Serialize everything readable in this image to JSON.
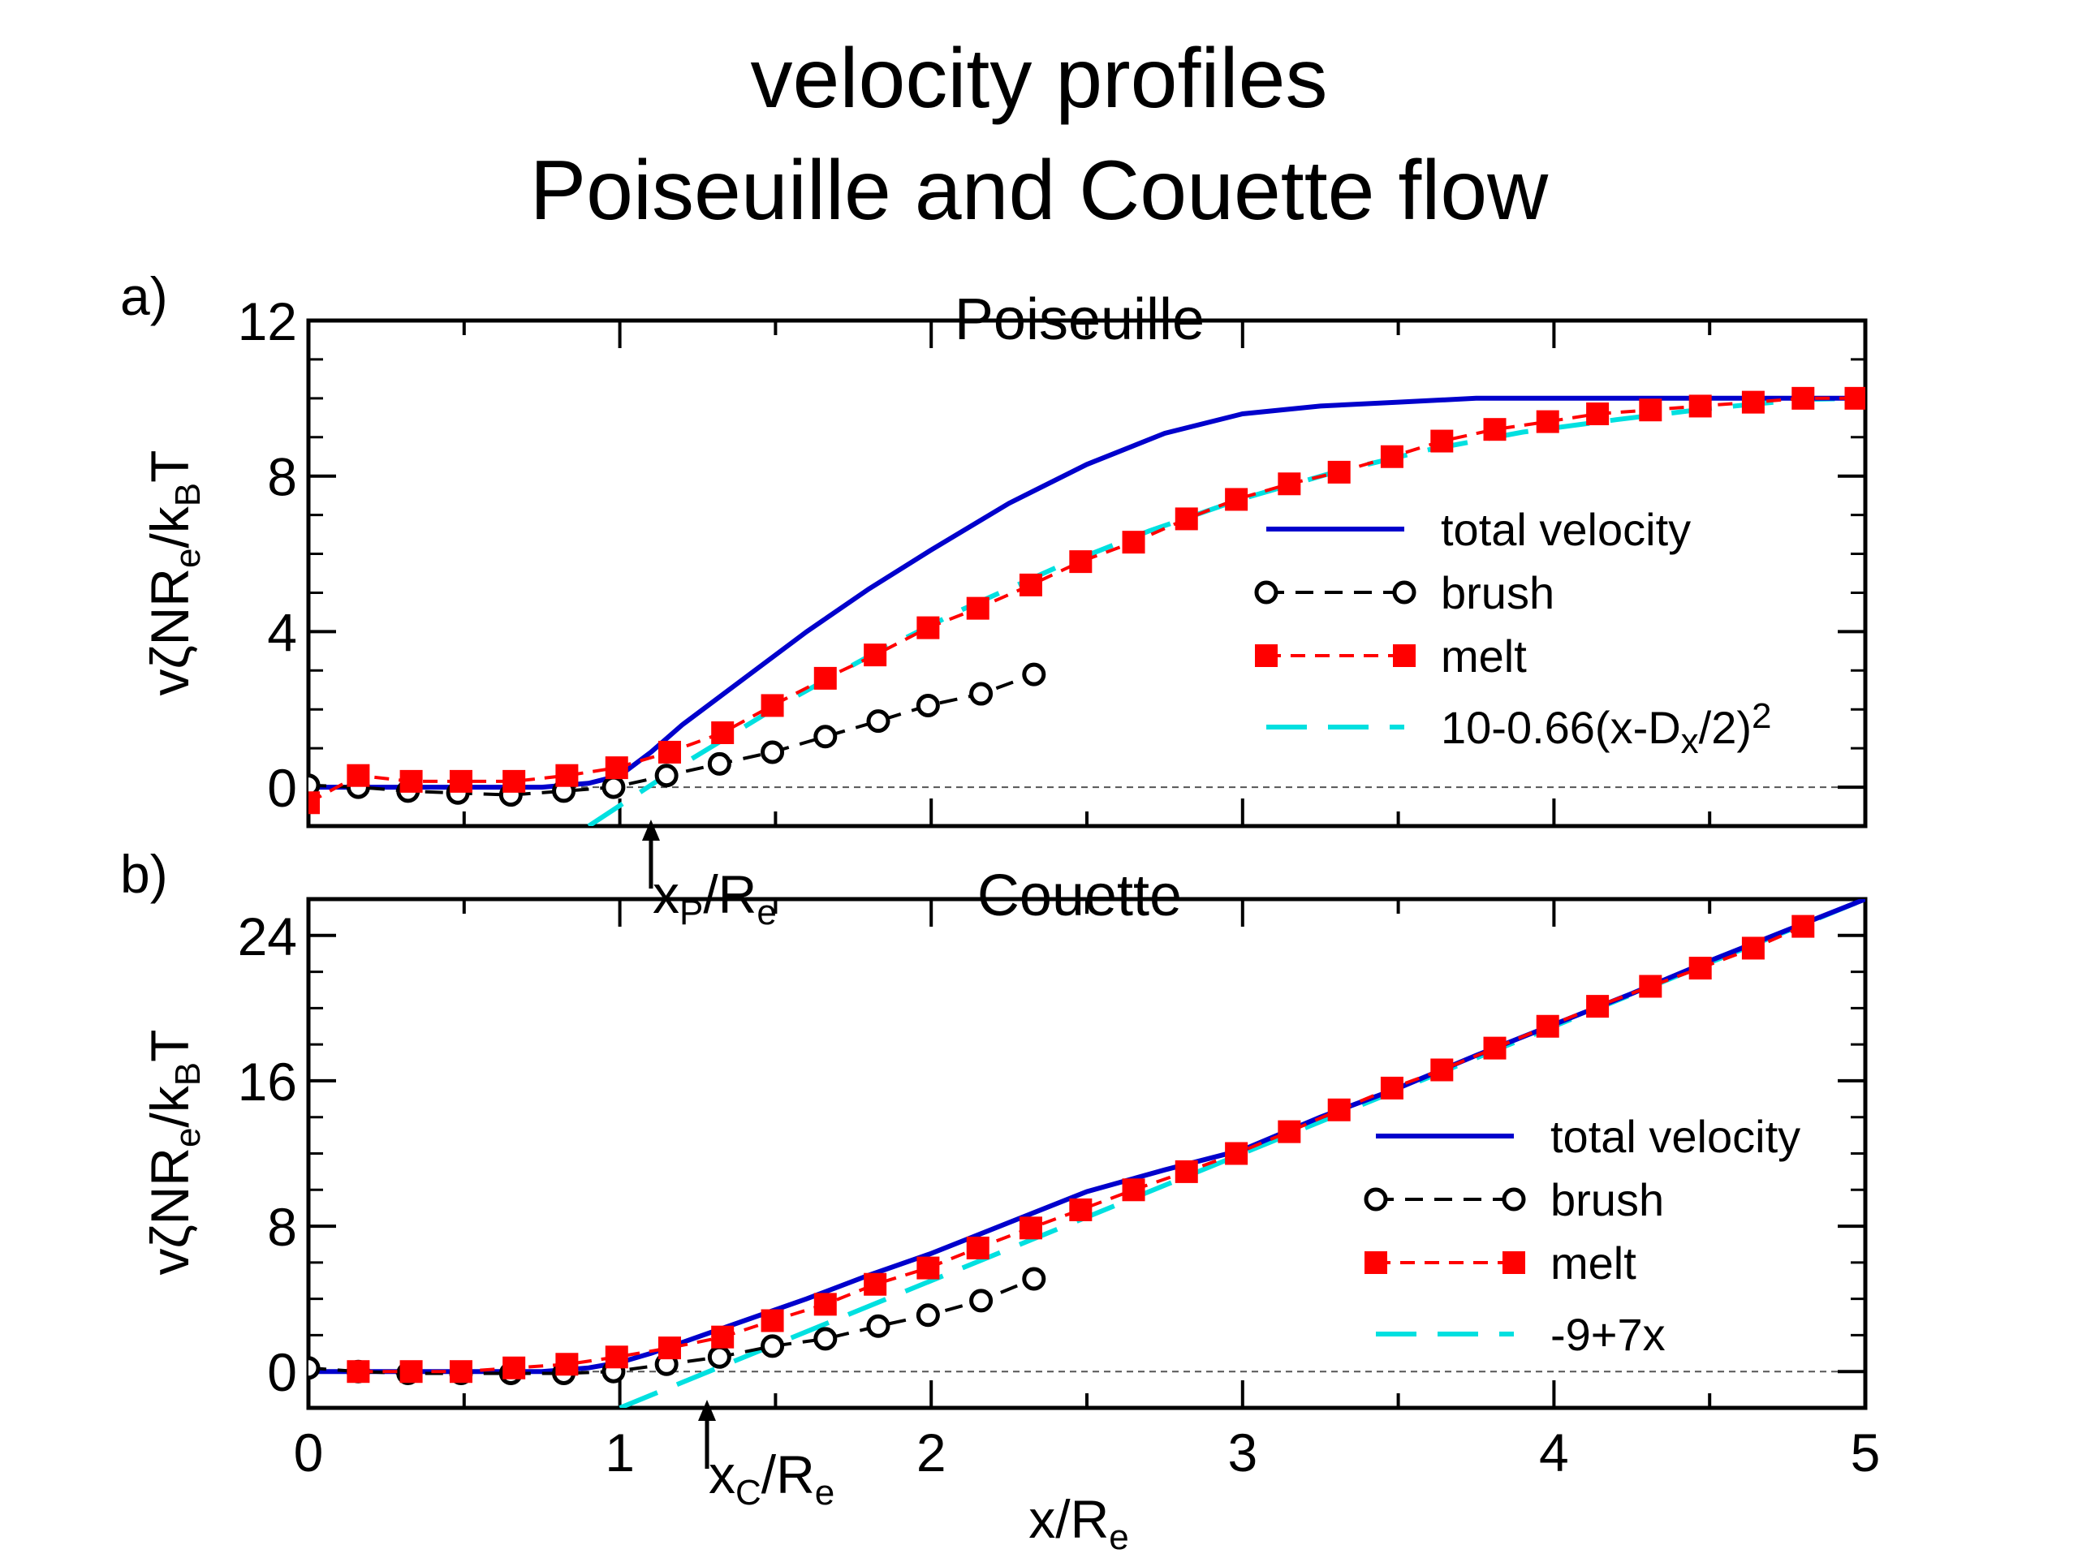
{
  "title_line1": "velocity profiles",
  "title_line2": "Poiseuille and Couette flow",
  "chart_data": [
    {
      "panel": "a)",
      "type": "line",
      "title": "Poiseuille",
      "xlim": [
        0,
        5
      ],
      "ylim": [
        -1,
        12
      ],
      "xticks": [
        0,
        1,
        2,
        3,
        4,
        5
      ],
      "yticks": [
        0,
        4,
        8,
        12
      ],
      "ylabel": "vζNR_e/k_BT",
      "legend_position": "right",
      "annotation": {
        "label": "x_P/R_e",
        "x": 1.1
      },
      "series": [
        {
          "name": "total velocity",
          "style": "solid",
          "color": "#0000cc",
          "x": [
            0,
            0.25,
            0.5,
            0.75,
            0.9,
            1.0,
            1.1,
            1.2,
            1.4,
            1.6,
            1.8,
            2.0,
            2.25,
            2.5,
            2.75,
            3.0,
            3.25,
            3.5,
            3.75,
            4.0,
            4.25,
            4.5,
            4.75,
            5.0
          ],
          "y": [
            0,
            0,
            0,
            0,
            0.1,
            0.3,
            0.9,
            1.6,
            2.8,
            4.0,
            5.1,
            6.1,
            7.3,
            8.3,
            9.1,
            9.6,
            9.8,
            9.9,
            10.0,
            10.0,
            10.0,
            10.0,
            10.0,
            10.0
          ]
        },
        {
          "name": "brush",
          "style": "dashed-circle",
          "color": "#000000",
          "x": [
            0,
            0.16,
            0.32,
            0.48,
            0.65,
            0.82,
            0.98,
            1.15,
            1.32,
            1.49,
            1.66,
            1.83,
            1.99,
            2.16,
            2.33
          ],
          "y": [
            0.05,
            0.0,
            -0.1,
            -0.15,
            -0.2,
            -0.1,
            0.0,
            0.3,
            0.6,
            0.9,
            1.3,
            1.7,
            2.1,
            2.4,
            2.9
          ]
        },
        {
          "name": "melt",
          "style": "dashed-square",
          "color": "#ff0000",
          "x": [
            0,
            0.16,
            0.33,
            0.49,
            0.66,
            0.83,
            0.99,
            1.16,
            1.33,
            1.49,
            1.66,
            1.82,
            1.99,
            2.15,
            2.32,
            2.48,
            2.65,
            2.82,
            2.98,
            3.15,
            3.31,
            3.48,
            3.64,
            3.81,
            3.98,
            4.14,
            4.31,
            4.47,
            4.64,
            4.8,
            4.97
          ],
          "y": [
            -0.4,
            0.3,
            0.15,
            0.15,
            0.15,
            0.3,
            0.5,
            0.9,
            1.4,
            2.1,
            2.8,
            3.4,
            4.1,
            4.6,
            5.2,
            5.8,
            6.3,
            6.9,
            7.4,
            7.8,
            8.1,
            8.5,
            8.9,
            9.2,
            9.4,
            9.6,
            9.7,
            9.8,
            9.9,
            10.0,
            10.0
          ]
        },
        {
          "name": "10-0.66(x-D_x/2)^2",
          "style": "long-dash",
          "color": "#00e0e0",
          "x": [
            0.9,
            1.2,
            1.5,
            1.8,
            2.1,
            2.4,
            2.7,
            3.0,
            3.3,
            3.6,
            3.9,
            4.2,
            4.5,
            4.8,
            5.0
          ],
          "y": [
            -1.0,
            0.58,
            2.04,
            3.37,
            4.57,
            5.64,
            6.59,
            7.42,
            8.11,
            8.68,
            9.13,
            9.45,
            9.74,
            9.97,
            10.0
          ]
        }
      ]
    },
    {
      "panel": "b)",
      "type": "line",
      "title": "Couette",
      "xlim": [
        0,
        5
      ],
      "ylim": [
        -2,
        26
      ],
      "xticks": [
        0,
        1,
        2,
        3,
        4,
        5
      ],
      "xtick_labels": [
        "0",
        "1",
        "2",
        "3",
        "4",
        "5"
      ],
      "yticks": [
        0,
        8,
        16,
        24
      ],
      "xlabel": "x/R_e",
      "ylabel": "vζNR_e/k_BT",
      "legend_position": "right",
      "annotation": {
        "label": "x_C/R_e",
        "x": 1.28
      },
      "series": [
        {
          "name": "total velocity",
          "style": "solid",
          "color": "#0000cc",
          "x": [
            0,
            0.25,
            0.5,
            0.75,
            0.9,
            1.0,
            1.1,
            1.2,
            1.4,
            1.6,
            1.8,
            2.0,
            2.25,
            2.5,
            2.75,
            3.0,
            3.25,
            3.5,
            3.75,
            4.0,
            4.25,
            4.5,
            4.75,
            5.0
          ],
          "y": [
            0,
            0,
            0,
            0,
            0.2,
            0.5,
            1.0,
            1.6,
            2.8,
            4.0,
            5.3,
            6.5,
            8.2,
            9.9,
            11.1,
            12.2,
            14.0,
            15.6,
            17.4,
            19.1,
            20.8,
            22.6,
            24.3,
            26.0
          ]
        },
        {
          "name": "brush",
          "style": "dashed-circle",
          "color": "#000000",
          "x": [
            0,
            0.16,
            0.32,
            0.49,
            0.65,
            0.82,
            0.98,
            1.15,
            1.32,
            1.49,
            1.66,
            1.83,
            1.99,
            2.16,
            2.33
          ],
          "y": [
            0.2,
            0.0,
            -0.1,
            -0.1,
            -0.1,
            -0.1,
            0.0,
            0.4,
            0.8,
            1.4,
            1.8,
            2.5,
            3.1,
            3.9,
            5.1
          ]
        },
        {
          "name": "melt",
          "style": "dashed-square",
          "color": "#ff0000",
          "x": [
            0.16,
            0.33,
            0.49,
            0.66,
            0.83,
            0.99,
            1.16,
            1.33,
            1.49,
            1.66,
            1.82,
            1.99,
            2.15,
            2.32,
            2.48,
            2.65,
            2.82,
            2.98,
            3.15,
            3.31,
            3.48,
            3.64,
            3.81,
            3.98,
            4.14,
            4.31,
            4.47,
            4.64,
            4.8
          ],
          "y": [
            0.0,
            0.0,
            0.0,
            0.2,
            0.4,
            0.8,
            1.3,
            1.9,
            2.8,
            3.7,
            4.8,
            5.7,
            6.8,
            7.9,
            8.9,
            10.0,
            11.0,
            12.0,
            13.2,
            14.4,
            15.6,
            16.6,
            17.8,
            19.0,
            20.1,
            21.2,
            22.2,
            23.3,
            24.5
          ]
        },
        {
          "name": "-9+7x",
          "style": "long-dash",
          "color": "#00e0e0",
          "x": [
            1.0,
            5.0
          ],
          "y": [
            -2.0,
            26.0
          ]
        }
      ]
    }
  ]
}
